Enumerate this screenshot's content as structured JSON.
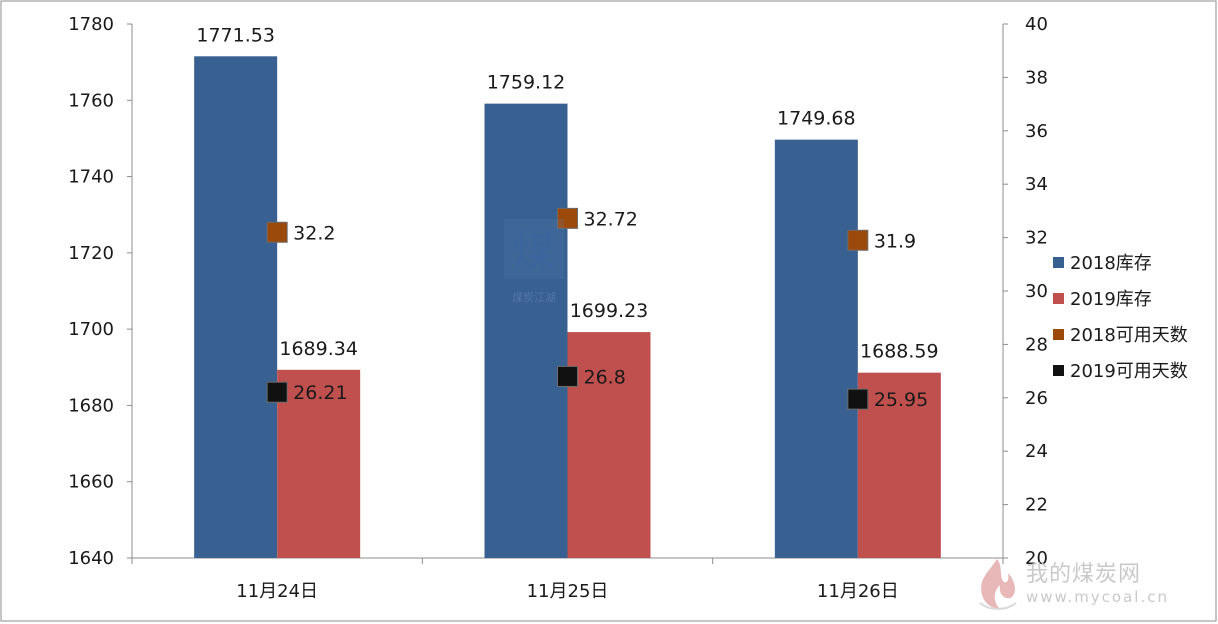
{
  "chart_data": {
    "type": "bar",
    "categories": [
      "11月24日",
      "11月25日",
      "11月26日"
    ],
    "series": [
      {
        "name": "2018库存",
        "kind": "bar",
        "axis": "left",
        "color": "#386090",
        "values": [
          1771.53,
          1759.12,
          1749.68
        ],
        "labels": [
          "1771.53",
          "1759.12",
          "1749.68"
        ]
      },
      {
        "name": "2019库存",
        "kind": "bar",
        "axis": "left",
        "color": "#c0504d",
        "values": [
          1689.34,
          1699.23,
          1688.59
        ],
        "labels": [
          "1689.34",
          "1699.23",
          "1688.59"
        ]
      },
      {
        "name": "2018可用天数",
        "kind": "marker",
        "axis": "right",
        "color": "#9c4a0c",
        "values": [
          32.2,
          32.72,
          31.9
        ],
        "labels": [
          "32.2",
          "32.72",
          "31.9"
        ]
      },
      {
        "name": "2019可用天数",
        "kind": "marker",
        "axis": "right",
        "color": "#111111",
        "values": [
          26.21,
          26.8,
          25.95
        ],
        "labels": [
          "26.21",
          "26.8",
          "25.95"
        ]
      }
    ],
    "y_left": {
      "min": 1640,
      "max": 1780,
      "step": 20,
      "ticks": [
        "1640",
        "1660",
        "1680",
        "1700",
        "1720",
        "1740",
        "1760",
        "1780"
      ]
    },
    "y_right": {
      "min": 20,
      "max": 40,
      "step": 2,
      "ticks": [
        "20",
        "22",
        "24",
        "26",
        "28",
        "30",
        "32",
        "34",
        "36",
        "38",
        "40"
      ]
    },
    "legend_position": "right",
    "grid": false
  },
  "watermark": {
    "site_name": "我的煤炭网",
    "url": "www.mycoal.cn",
    "logo_caption": "煤炭江湖",
    "logo_glyph": "煤"
  }
}
